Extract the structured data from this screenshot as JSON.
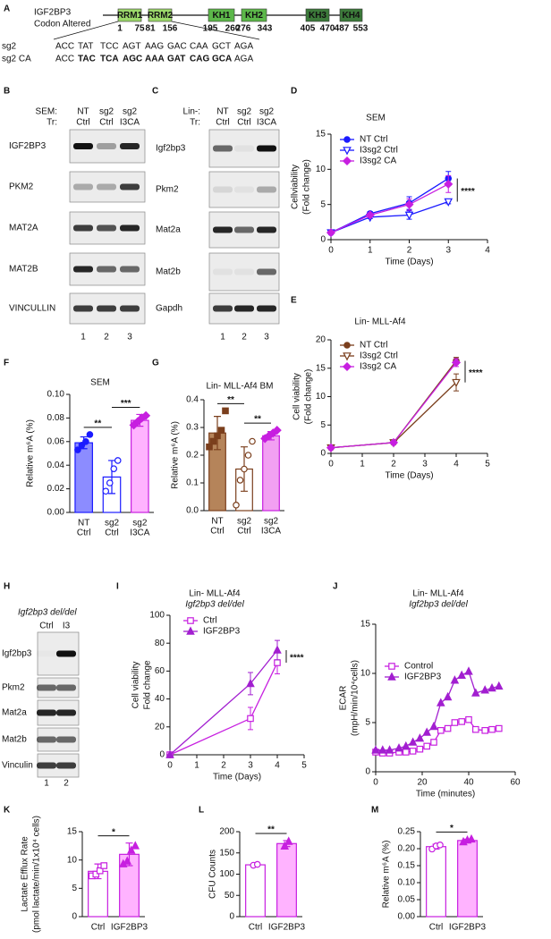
{
  "schematic": {
    "panel": "A",
    "protein": "IGF2BP3",
    "note": "Codon Altered",
    "domains": [
      {
        "name": "RRM1",
        "start": 1,
        "end": 75,
        "color": "#9bd86a"
      },
      {
        "name": "RRM2",
        "start": 81,
        "end": 156,
        "color": "#9bd86a"
      },
      {
        "name": "KH1",
        "start": 195,
        "end": 260,
        "color": "#5cb84a"
      },
      {
        "name": "KH2",
        "start": 276,
        "end": 343,
        "color": "#5cb84a"
      },
      {
        "name": "KH3",
        "start": 405,
        "end": 470,
        "color": "#3c7a3a"
      },
      {
        "name": "KH4",
        "start": 487,
        "end": 553,
        "color": "#3c7a3a"
      }
    ],
    "sequences": [
      {
        "name": "sg2",
        "codons": [
          "ACC",
          "TAT",
          "TCC",
          "AGT",
          "AAG",
          "GAC",
          "CAA",
          "GCT",
          "AGA"
        ]
      },
      {
        "name": "sg2 CA",
        "codons": [
          "ACC",
          "TAC",
          "TCA",
          "AGC",
          "AAA",
          "GAT",
          "CAG",
          "GCA",
          "AGA"
        ]
      }
    ]
  },
  "blots": [
    {
      "panel": "B",
      "header_labels": [
        "SEM:",
        "Tr:"
      ],
      "lanes": [
        [
          "NT",
          "Ctrl"
        ],
        [
          "sg2",
          "Ctrl"
        ],
        [
          "sg2",
          "I3CA"
        ]
      ],
      "rows": [
        "IGF2BP3",
        "PKM2",
        "MAT2A",
        "MAT2B",
        "VINCULLIN"
      ],
      "lane_numbers": [
        1,
        2,
        3
      ]
    },
    {
      "panel": "C",
      "header_labels": [
        "Lin-:",
        "Tr:"
      ],
      "lanes": [
        [
          "NT",
          "Ctrl"
        ],
        [
          "sg2",
          "Ctrl"
        ],
        [
          "sg2",
          "I3CA"
        ]
      ],
      "rows": [
        "Igf2bp3",
        "Pkm2",
        "Mat2a",
        "Mat2b",
        "Gapdh"
      ],
      "lane_numbers": [
        1,
        2,
        3
      ]
    },
    {
      "panel": "H",
      "title": "Igf2bp3 del/del",
      "lanes": [
        [
          "Ctrl"
        ],
        [
          "I3"
        ]
      ],
      "rows": [
        "Igf2bp3",
        "Pkm2",
        "Mat2a",
        "Mat2b",
        "Vinculin"
      ],
      "lane_numbers": [
        1,
        2
      ]
    }
  ],
  "chart_data": [
    {
      "panel": "D",
      "type": "line",
      "title": "SEM",
      "ylabel": [
        "Cellviability",
        "(Fold change)"
      ],
      "xlabel": "Time (Days)",
      "xlim": [
        0,
        4
      ],
      "xticks": [
        0,
        1,
        2,
        3,
        4
      ],
      "ylim": [
        0,
        15
      ],
      "yticks": [
        0,
        5,
        10,
        15
      ],
      "x": [
        0,
        1,
        2,
        3
      ],
      "series": [
        {
          "name": "NT Ctrl",
          "color": "#1a1aff",
          "marker": "circle",
          "values": [
            1,
            3.7,
            5.2,
            8.7
          ],
          "errors": [
            null,
            0.3,
            0.9,
            1.0
          ]
        },
        {
          "name": "I3sg2 Ctrl",
          "color": "#1a1aff",
          "marker": "triangle-down-open",
          "values": [
            1,
            3.2,
            3.5,
            5.4
          ],
          "errors": [
            null,
            0.2,
            0.6,
            0.3
          ]
        },
        {
          "name": "I3sg2 CA",
          "color": "#c71fe0",
          "marker": "diamond",
          "values": [
            1,
            3.5,
            5.0,
            7.9
          ],
          "errors": [
            null,
            0.3,
            0.8,
            1.2
          ]
        }
      ],
      "significance": "****"
    },
    {
      "panel": "E",
      "type": "line",
      "title": "Lin- MLL-Af4",
      "ylabel": [
        "Cell viability",
        "(Fold change)"
      ],
      "xlabel": "Time (Days)",
      "xlim": [
        0,
        5
      ],
      "xticks": [
        0,
        1,
        2,
        3,
        4,
        5
      ],
      "ylim": [
        0,
        20
      ],
      "yticks": [
        0,
        5,
        10,
        15,
        20
      ],
      "x": [
        0,
        2,
        4
      ],
      "series": [
        {
          "name": "NT Ctrl",
          "color": "#7b3f1d",
          "marker": "circle",
          "values": [
            1,
            1.9,
            16.3
          ],
          "errors": [
            null,
            0.2,
            0.6
          ]
        },
        {
          "name": "I3sg2 Ctrl",
          "color": "#7b3f1d",
          "marker": "triangle-down-open",
          "values": [
            1,
            1.9,
            12.5
          ],
          "errors": [
            null,
            0.2,
            1.5
          ]
        },
        {
          "name": "I3sg2 CA",
          "color": "#c71fe0",
          "marker": "diamond",
          "values": [
            1,
            1.9,
            16.0
          ],
          "errors": [
            null,
            0.2,
            0.7
          ]
        }
      ],
      "significance": "****"
    },
    {
      "panel": "F",
      "type": "bar",
      "title": "SEM",
      "ylabel": [
        "Relative m⁶A (%)"
      ],
      "categories": [
        [
          "NT",
          "Ctrl"
        ],
        [
          "sg2",
          "Ctrl"
        ],
        [
          "sg2",
          "I3CA"
        ]
      ],
      "values": [
        0.059,
        0.03,
        0.078
      ],
      "errors": [
        0.005,
        0.014,
        0.005
      ],
      "points": [
        [
          0.053,
          0.057,
          0.06,
          0.066
        ],
        [
          0.018,
          0.025,
          0.037,
          0.044
        ],
        [
          0.074,
          0.077,
          0.08,
          0.082
        ]
      ],
      "colors": [
        "#8c8cff",
        "#ffffff",
        "#ffb3ff"
      ],
      "strokes": [
        "#1a1aff",
        "#1a1aff",
        "#c71fe0"
      ],
      "markers": [
        "circle",
        "circle-open",
        "diamond"
      ],
      "ylim": [
        0,
        0.1
      ],
      "yticks": [
        {
          "value": 0,
          "label": "0.00"
        },
        0.02,
        0.04,
        0.06,
        0.08,
        {
          "value": 0.1,
          "label": "0.10"
        }
      ],
      "significance": [
        "**",
        "***"
      ]
    },
    {
      "panel": "G",
      "type": "bar",
      "title": "Lin- MLL-Af4 BM",
      "ylabel": [
        "Relative m⁶A (%)"
      ],
      "categories": [
        [
          "NT",
          "Ctrl"
        ],
        [
          "sg2",
          "Ctrl"
        ],
        [
          "sg2",
          "I3CA"
        ]
      ],
      "values": [
        0.28,
        0.15,
        0.27
      ],
      "errors": [
        0.06,
        0.08,
        0.015
      ],
      "points": [
        [
          0.23,
          0.25,
          0.27,
          0.29,
          0.36
        ],
        [
          0.02,
          0.11,
          0.15,
          0.2,
          0.25
        ],
        [
          0.26,
          0.27,
          0.28,
          0.29
        ]
      ],
      "colors": [
        "#b5845a",
        "#ffffff",
        "#f2a0f2"
      ],
      "strokes": [
        "#7b3f1d",
        "#7b3f1d",
        "#c71fe0"
      ],
      "markers": [
        "square",
        "circle-open",
        "diamond"
      ],
      "ylim": [
        0,
        0.4
      ],
      "yticks": [
        {
          "value": 0,
          "label": "0.0"
        },
        0.1,
        0.2,
        0.3,
        0.4
      ],
      "significance": [
        "**",
        "**"
      ]
    },
    {
      "panel": "I",
      "type": "line",
      "title": [
        "Lin- MLL-Af4",
        "Igf2bp3 del/del"
      ],
      "ylabel": [
        "Cell viability",
        "Fold change"
      ],
      "xlabel": "Time (Days)",
      "xlim": [
        0,
        5
      ],
      "xticks": [
        0,
        1,
        2,
        3,
        4,
        5
      ],
      "ylim": [
        0,
        100
      ],
      "yticks": [
        0,
        20,
        40,
        60,
        80,
        100
      ],
      "x": [
        0,
        3,
        4
      ],
      "series": [
        {
          "name": "Ctrl",
          "color": "#c71fe0",
          "marker": "square-open",
          "values": [
            0,
            26,
            66
          ],
          "errors": [
            null,
            8,
            8
          ]
        },
        {
          "name": "IGF2BP3",
          "color": "#a21fd0",
          "marker": "triangle",
          "values": [
            0,
            51,
            75
          ],
          "errors": [
            null,
            8,
            7
          ]
        }
      ],
      "significance": "****"
    },
    {
      "panel": "J",
      "type": "line",
      "title": [
        "Lin- MLL-Af4",
        "Igf2bp3 del/del"
      ],
      "ylabel": [
        "ECAR",
        "(mpH/min/10⁴cells)"
      ],
      "xlabel": "Time (minutes)",
      "xlim": [
        0,
        60
      ],
      "xticks": [
        0,
        20,
        40,
        60
      ],
      "ylim": [
        0,
        15
      ],
      "yticks": [
        0,
        5,
        10,
        15
      ],
      "x": [
        0,
        3,
        6,
        10,
        13,
        16,
        19,
        22,
        25,
        28,
        31,
        34,
        37,
        40,
        43,
        47,
        50,
        53
      ],
      "series": [
        {
          "name": "Control",
          "color": "#c71fe0",
          "marker": "square-open",
          "values": [
            2.0,
            1.9,
            1.9,
            2.0,
            2.0,
            2.1,
            2.3,
            2.6,
            3.0,
            4.2,
            4.4,
            5.0,
            5.1,
            5.3,
            4.3,
            4.2,
            4.3,
            4.4
          ]
        },
        {
          "name": "IGF2BP3",
          "color": "#a21fd0",
          "marker": "triangle",
          "values": [
            2.2,
            2.2,
            2.2,
            2.4,
            2.6,
            3.0,
            3.4,
            4.0,
            4.6,
            7.0,
            7.6,
            9.3,
            9.8,
            10.2,
            8.0,
            8.3,
            8.5,
            8.7
          ]
        }
      ]
    },
    {
      "panel": "K",
      "type": "bar",
      "ylabel": [
        "Lactate Efflux Rate",
        "(pmol lactate/min/1x10⁴ cells)"
      ],
      "categories": [
        [
          "Ctrl"
        ],
        [
          "IGF2BP3"
        ]
      ],
      "values": [
        8.0,
        11.0
      ],
      "errors": [
        1.3,
        2.0
      ],
      "points": [
        [
          7.2,
          7.5,
          8.1,
          9.0
        ],
        [
          9.3,
          9.8,
          11.7,
          12.5
        ]
      ],
      "colors": [
        "#ffffff",
        "#ffb3ff"
      ],
      "strokes": [
        "#c71fe0",
        "#c71fe0"
      ],
      "markers": [
        "square-open",
        "triangle"
      ],
      "ylim": [
        0,
        15
      ],
      "yticks": [
        0,
        5,
        10,
        15
      ],
      "significance": "*"
    },
    {
      "panel": "L",
      "type": "bar",
      "ylabel": [
        "CFU Counts"
      ],
      "categories": [
        [
          "Ctrl"
        ],
        [
          "IGF2BP3"
        ]
      ],
      "values": [
        122,
        172
      ],
      "errors": [
        2,
        7
      ],
      "points": [
        [
          121,
          123
        ],
        [
          166,
          177
        ]
      ],
      "colors": [
        "#ffffff",
        "#ffb3ff"
      ],
      "strokes": [
        "#c71fe0",
        "#c71fe0"
      ],
      "markers": [
        "circle-open",
        "triangle"
      ],
      "ylim": [
        0,
        200
      ],
      "yticks": [
        0,
        50,
        100,
        150,
        200
      ],
      "significance": "**"
    },
    {
      "panel": "M",
      "type": "bar",
      "ylabel": [
        "Relative m⁶A (%)"
      ],
      "categories": [
        [
          "Ctrl"
        ],
        [
          "IGF2BP3"
        ]
      ],
      "values": [
        0.206,
        0.224
      ],
      "errors": [
        0.007,
        0.004
      ],
      "points": [
        [
          0.199,
          0.208,
          0.211
        ],
        [
          0.22,
          0.225,
          0.228
        ]
      ],
      "colors": [
        "#ffffff",
        "#ffb3ff"
      ],
      "strokes": [
        "#c71fe0",
        "#c71fe0"
      ],
      "markers": [
        "circle-open",
        "triangle"
      ],
      "ylim": [
        0,
        0.25
      ],
      "yticks": [
        {
          "value": 0,
          "label": "0.00"
        },
        0.05,
        {
          "value": 0.1,
          "label": "0.10"
        },
        0.15,
        {
          "value": 0.2,
          "label": "0.20"
        },
        0.25
      ],
      "significance": "*"
    }
  ]
}
